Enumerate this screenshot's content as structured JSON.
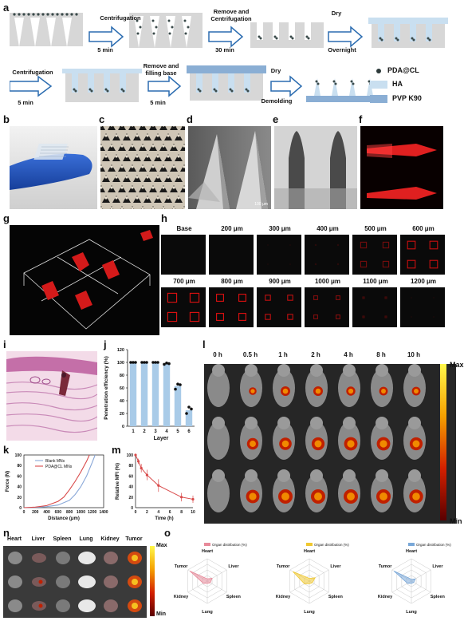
{
  "panels": {
    "a": {
      "label": "a",
      "steps_row1": [
        {
          "text": "Centrifugation",
          "sub": "5 min"
        },
        {
          "text": "Remove and Centrifugation",
          "sub": "30 min"
        },
        {
          "text": "Dry",
          "sub": "Overnight"
        }
      ],
      "steps_row2": [
        {
          "text": "Centrifugation",
          "sub": "5 min"
        },
        {
          "text": "Remove and filling base",
          "sub": "5 min"
        },
        {
          "text": "Dry",
          "sub": "Demolding"
        }
      ],
      "legend": [
        {
          "name": "PDA@CL",
          "color": "#2d3a3a"
        },
        {
          "name": "HA",
          "color": "#c9dff0"
        },
        {
          "name": "PVP K90",
          "color": "#8aaed4"
        }
      ]
    },
    "b": {
      "label": "b"
    },
    "c": {
      "label": "c"
    },
    "d": {
      "label": "d",
      "scale": "100 μm"
    },
    "e": {
      "label": "e"
    },
    "f": {
      "label": "f"
    },
    "g": {
      "label": "g"
    },
    "h": {
      "label": "h",
      "depths_row1": [
        "Base",
        "200 μm",
        "300 μm",
        "400 μm",
        "500 μm",
        "600 μm"
      ],
      "depths_row2": [
        "700 μm",
        "800 μm",
        "900 μm",
        "1000 μm",
        "1100 μm",
        "1200 μm"
      ]
    },
    "i": {
      "label": "i"
    },
    "l": {
      "label": "l",
      "times": [
        "0 h",
        "0.5 h",
        "1 h",
        "2 h",
        "4 h",
        "8 h",
        "10 h"
      ],
      "scale_max": "Max",
      "scale_min": "Min"
    },
    "n": {
      "label": "n",
      "organs": [
        "Heart",
        "Liver",
        "Spleen",
        "Lung",
        "Kidney",
        "Tumor"
      ],
      "scale_max": "Max",
      "scale_min": "Min"
    },
    "o": {
      "label": "o",
      "axes": [
        "Heart",
        "Liver",
        "Spleen",
        "Lung",
        "Kidney",
        "Tumor"
      ],
      "legend": "Organ distribution (%)",
      "colors": [
        "#e88a9a",
        "#f0c830",
        "#7aa8d8"
      ]
    }
  },
  "chart_data": [
    {
      "panel": "j",
      "type": "bar",
      "categories": [
        "1",
        "2",
        "3",
        "4",
        "5",
        "6"
      ],
      "values": [
        100,
        100,
        100,
        98,
        63,
        25
      ],
      "points": [
        [
          100,
          100,
          100
        ],
        [
          100,
          100,
          100
        ],
        [
          100,
          100,
          100
        ],
        [
          97,
          99,
          98
        ],
        [
          58,
          66,
          65
        ],
        [
          20,
          30,
          27
        ]
      ],
      "xlabel": "Layer",
      "ylabel": "Penetration efficiency (%)",
      "ylim": [
        0,
        120
      ],
      "yticks": [
        0,
        20,
        40,
        60,
        80,
        100,
        120
      ],
      "color": "#a9cbe8"
    },
    {
      "panel": "k",
      "type": "line",
      "xlabel": "Distance (μm)",
      "ylabel": "Force (N)",
      "xlim": [
        0,
        1400
      ],
      "ylim": [
        0,
        100
      ],
      "xticks": [
        0,
        200,
        400,
        600,
        800,
        1000,
        1200,
        1400
      ],
      "yticks": [
        0,
        20,
        40,
        60,
        80,
        100
      ],
      "series": [
        {
          "name": "Blank MNs",
          "color": "#8aa8d8",
          "x": [
            0,
            200,
            400,
            600,
            800,
            900,
            1000,
            1100,
            1200,
            1250
          ],
          "y": [
            0,
            0.5,
            2,
            5,
            14,
            25,
            40,
            60,
            86,
            100
          ]
        },
        {
          "name": "PDA@CL MNs",
          "color": "#d94a4a",
          "x": [
            0,
            200,
            400,
            600,
            700,
            800,
            900,
            1000,
            1100,
            1150
          ],
          "y": [
            0,
            1,
            4,
            12,
            20,
            34,
            50,
            68,
            88,
            100
          ]
        }
      ]
    },
    {
      "panel": "m",
      "type": "line",
      "xlabel": "Time (h)",
      "ylabel": "Relative MFI (%)",
      "xlim": [
        0,
        10
      ],
      "ylim": [
        0,
        100
      ],
      "xticks": [
        0,
        2,
        4,
        6,
        8,
        10
      ],
      "yticks": [
        0,
        20,
        40,
        60,
        80,
        100
      ],
      "series": [
        {
          "name": "",
          "color": "#d94a4a",
          "x": [
            0,
            0.5,
            1,
            2,
            4,
            8,
            10
          ],
          "y": [
            100,
            88,
            75,
            62,
            42,
            20,
            16
          ],
          "err": [
            0,
            5,
            8,
            10,
            12,
            8,
            7
          ]
        }
      ]
    },
    {
      "panel": "o",
      "type": "radar",
      "axes": [
        "Heart",
        "Liver",
        "Spleen",
        "Lung",
        "Kidney",
        "Tumor"
      ],
      "series": [
        {
          "name": "Organ distribution (%)",
          "values": [
            0.1,
            0.25,
            0.15,
            0.1,
            0.2,
            0.9
          ]
        },
        {
          "name": "Organ distribution (%)",
          "values": [
            0.12,
            0.3,
            0.15,
            0.12,
            0.25,
            0.85
          ]
        },
        {
          "name": "Organ distribution (%)",
          "values": [
            0.08,
            0.2,
            0.12,
            0.1,
            0.2,
            0.9
          ]
        }
      ]
    }
  ]
}
